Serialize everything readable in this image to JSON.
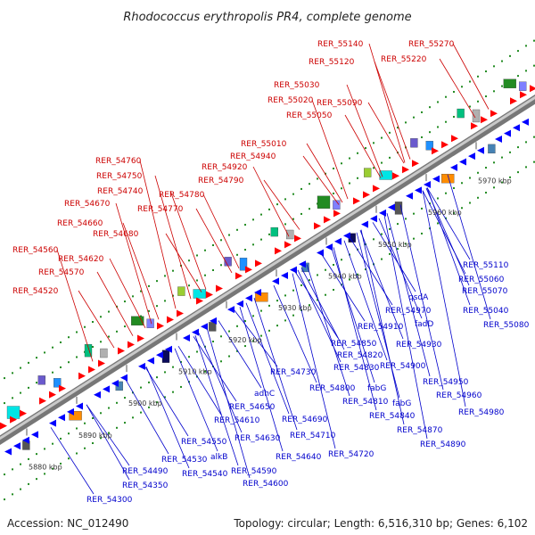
{
  "title": "Rhodococcus erythropolis PR4, complete genome",
  "accession": "Accession: NC_012490",
  "topology": "Topology: circular; Length: 6,516,310 bp; Genes: 6,102",
  "colors": {
    "forward_label": "#cc0000",
    "reverse_label": "#0000cc",
    "forward_arrow": "#ff0000",
    "reverse_arrow": "#0000ff",
    "backbone": "#999999",
    "dots": "#228b22"
  },
  "ticks": [
    "5880 kbp",
    "5890 kbp",
    "5900 kbp",
    "5910 kbp",
    "5920 kbp",
    "5930 kbp",
    "5940 kbp",
    "5950 kbp",
    "5960 kbp",
    "5970 kbp"
  ],
  "forward_labels": [
    "RER_55270",
    "RER_55140",
    "RER_55220",
    "RER_55120",
    "RER_55030",
    "RER_55020",
    "RER_55090",
    "RER_55050",
    "RER_55010",
    "RER_54940",
    "RER_54760",
    "RER_54920",
    "RER_54750",
    "RER_54790",
    "RER_54740",
    "RER_54780",
    "RER_54670",
    "RER_54770",
    "RER_54660",
    "RER_54680",
    "RER_54560",
    "RER_54620",
    "RER_54570",
    "RER_54520"
  ],
  "reverse_labels": [
    "RER_55110",
    "RER_55060",
    "RER_55070",
    "qsdA",
    "RER_55040",
    "RER_54970",
    "fadD",
    "RER_55080",
    "RER_54910",
    "RER_54930",
    "RER_54850",
    "RER_54820",
    "RER_54830",
    "RER_54900",
    "RER_54730",
    "fabG",
    "RER_54950",
    "RER_54800",
    "fabG",
    "RER_54960",
    "adhC",
    "RER_54810",
    "RER_54840",
    "RER_54980",
    "RER_54650",
    "RER_54690",
    "RER_54870",
    "RER_54610",
    "RER_54630",
    "RER_54710",
    "RER_54890",
    "RER_54550",
    "RER_54640",
    "RER_54720",
    "alkB",
    "RER_54530",
    "RER_54590",
    "RER_54490",
    "RER_54540",
    "RER_54600",
    "RER_54350",
    "RER_54300"
  ]
}
